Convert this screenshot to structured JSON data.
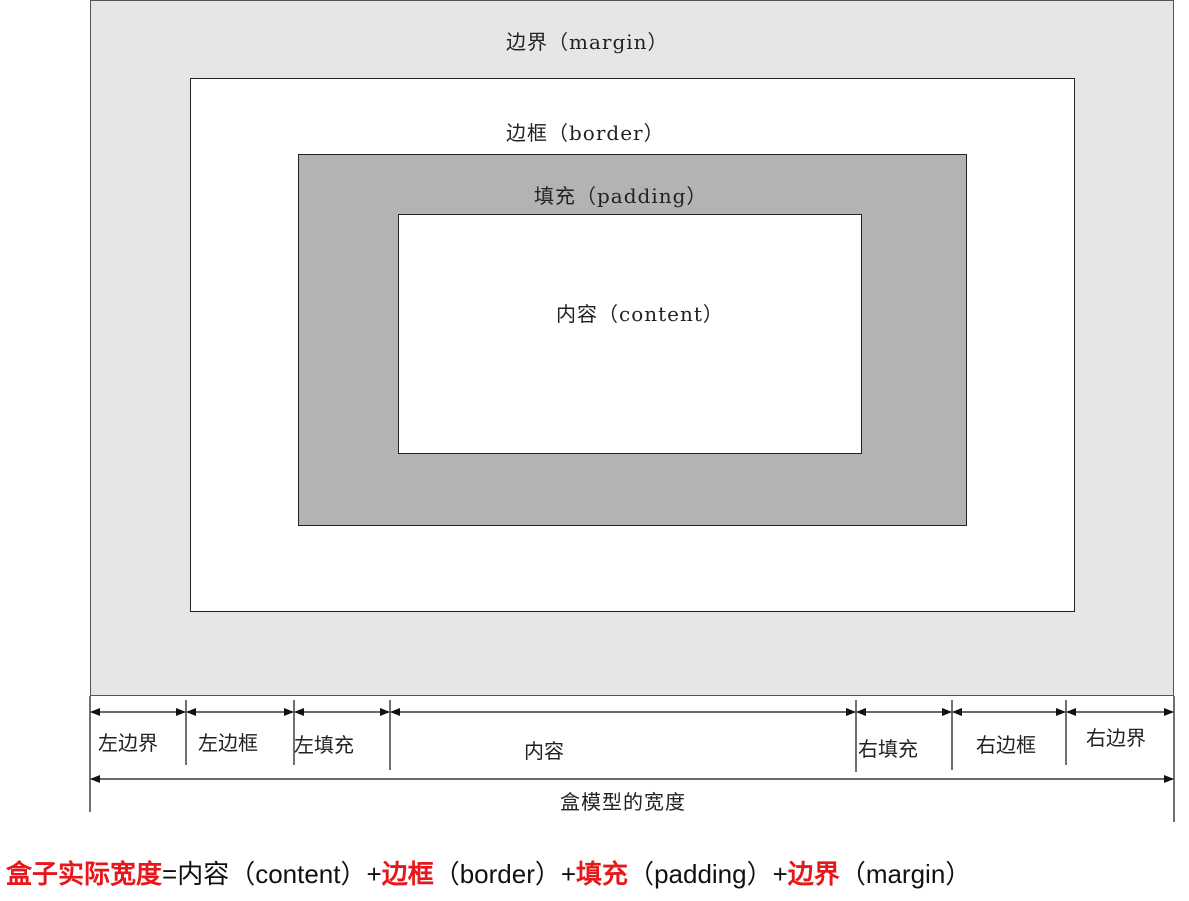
{
  "labels": {
    "margin": "边界（margin）",
    "border": "边框（border）",
    "padding": "填充（padding）",
    "content": "内容（content）"
  },
  "dimension_segments": [
    "左边界",
    "左边框",
    "左填充",
    "内容",
    "右填充",
    "右边框",
    "右边界"
  ],
  "total_width_label": "盒模型的宽度",
  "formula": {
    "term1": "盒子实际宽度",
    "eq": "=",
    "term2": "内容（content）+",
    "term3": "边框",
    "term4": "（border）+",
    "term5": "填充",
    "term6": "（padding）+",
    "term7": "边界",
    "term8": "（margin）"
  },
  "colors": {
    "margin_fill": "#e6e6e6",
    "padding_fill": "#b3b3b3",
    "highlight": "#e8171b"
  }
}
